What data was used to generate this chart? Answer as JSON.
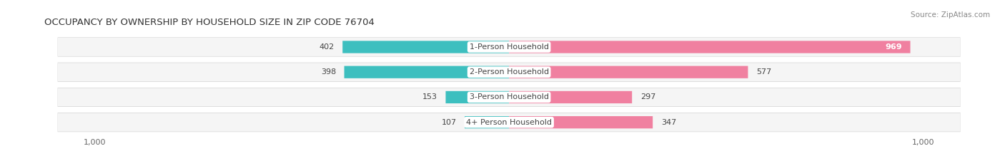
{
  "title": "OCCUPANCY BY OWNERSHIP BY HOUSEHOLD SIZE IN ZIP CODE 76704",
  "source": "Source: ZipAtlas.com",
  "categories": [
    "1-Person Household",
    "2-Person Household",
    "3-Person Household",
    "4+ Person Household"
  ],
  "owner_values": [
    402,
    398,
    153,
    107
  ],
  "renter_values": [
    969,
    577,
    297,
    347
  ],
  "owner_color": "#3DBFBF",
  "renter_color": "#F080A0",
  "row_bg_color": "#F2F2F2",
  "row_border_color": "#DDDDDD",
  "axis_max": 1000,
  "title_fontsize": 9.5,
  "value_fontsize": 8,
  "cat_fontsize": 8,
  "tick_fontsize": 8,
  "source_fontsize": 7.5,
  "legend_fontsize": 8,
  "figsize": [
    14.06,
    2.33
  ],
  "dpi": 100
}
